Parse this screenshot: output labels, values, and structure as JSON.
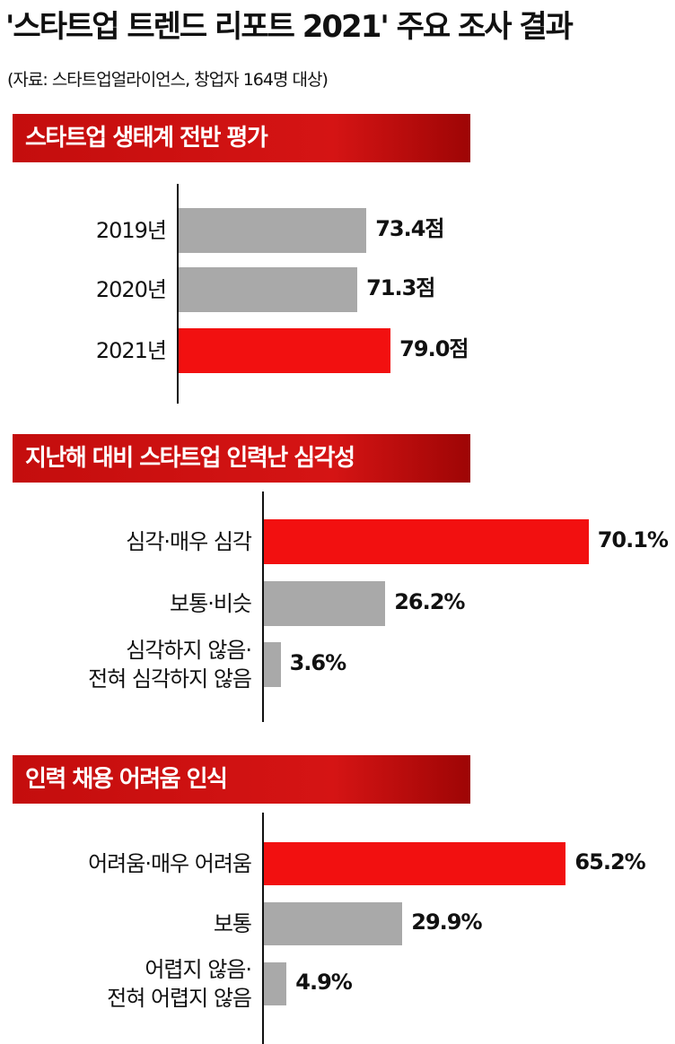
{
  "title": "'스타트업 트렌드 리포트 2021' 주요 조사 결과",
  "source": "(자료: 스타트업얼라이언스, 창업자 164명 대상)",
  "colors": {
    "highlight": "#f21010",
    "normal": "#a9a9a9",
    "banner": "#c40d0d"
  },
  "chart_data": [
    {
      "type": "bar",
      "title": "스타트업 생태계 전반 평가",
      "categories": [
        "2019년",
        "2020년",
        "2021년"
      ],
      "values": [
        73.4,
        71.3,
        79.0
      ],
      "value_labels": [
        "73.4점",
        "71.3점",
        "79.0점"
      ],
      "highlight": [
        false,
        false,
        true
      ]
    },
    {
      "type": "bar",
      "title": "지난해 대비 스타트업 인력난 심각성",
      "categories": [
        "심각·매우 심각",
        "보통·비슷",
        "심각하지 않음· 전혀 심각하지 않음"
      ],
      "values": [
        70.1,
        26.2,
        3.6
      ],
      "value_labels": [
        "70.1%",
        "26.2%",
        "3.6%"
      ],
      "highlight": [
        true,
        false,
        false
      ]
    },
    {
      "type": "bar",
      "title": "인력 채용 어려움 인식",
      "categories": [
        "어려움·매우 어려움",
        "보통",
        "어렵지 않음· 전혀 어렵지 않음"
      ],
      "values": [
        65.2,
        29.9,
        4.9
      ],
      "value_labels": [
        "65.2%",
        "29.9%",
        "4.9%"
      ],
      "highlight": [
        true,
        false,
        false
      ]
    }
  ]
}
